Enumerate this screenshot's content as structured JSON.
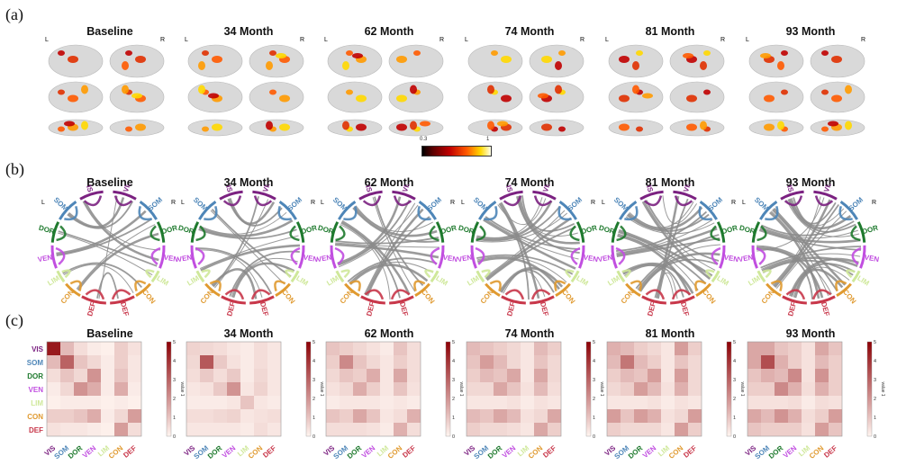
{
  "panel_labels": {
    "a": "(a)",
    "b": "(b)",
    "c": "(c)"
  },
  "timepoints": [
    "Baseline",
    "34 Month",
    "62 Month",
    "74 Month",
    "81 Month",
    "93 Month"
  ],
  "hemisphere_labels": {
    "left": "L",
    "right": "R"
  },
  "brain_colorbar": {
    "min_label": "0.3",
    "max_label": "1",
    "colors": [
      "#000000",
      "#5a0000",
      "#c00000",
      "#ff5a00",
      "#ffd800",
      "#ffffe8"
    ]
  },
  "networks": [
    {
      "name": "VIS",
      "color": "#7b2181"
    },
    {
      "name": "SOM",
      "color": "#4e86b8"
    },
    {
      "name": "DOR",
      "color": "#1f7a2e"
    },
    {
      "name": "VEN",
      "color": "#c14ee0"
    },
    {
      "name": "LIM",
      "color": "#cfe89a"
    },
    {
      "name": "CON",
      "color": "#e09a30"
    },
    {
      "name": "DEF",
      "color": "#c8374a"
    }
  ],
  "heatmap_colorbar": {
    "label": "value 1",
    "ticks": [
      "0",
      "1",
      "2",
      "3",
      "4",
      "5"
    ]
  },
  "chart_data": [
    {
      "type": "heatmap",
      "title": "Baseline",
      "categories": [
        "VIS",
        "SOM",
        "DOR",
        "VEN",
        "LIM",
        "CON",
        "DEF"
      ],
      "range": [
        0,
        5
      ],
      "values": [
        [
          4.5,
          1.2,
          0.5,
          0.2,
          0.1,
          0.8,
          0.4
        ],
        [
          1.2,
          3.0,
          1.0,
          0.6,
          0.2,
          0.8,
          0.3
        ],
        [
          0.5,
          1.0,
          0.6,
          2.0,
          0.2,
          1.0,
          0.3
        ],
        [
          0.2,
          0.6,
          2.0,
          1.5,
          0.2,
          1.5,
          0.2
        ],
        [
          0.1,
          0.2,
          0.2,
          0.2,
          0.1,
          0.2,
          0.1
        ],
        [
          0.8,
          0.8,
          1.0,
          1.5,
          0.2,
          0.6,
          1.8
        ],
        [
          0.4,
          0.3,
          0.3,
          0.2,
          0.1,
          1.8,
          0.5
        ]
      ]
    },
    {
      "type": "heatmap",
      "title": "34 Month",
      "categories": [
        "VIS",
        "SOM",
        "DOR",
        "VEN",
        "LIM",
        "CON",
        "DEF"
      ],
      "range": [
        0,
        5
      ],
      "values": [
        [
          0.7,
          0.6,
          0.5,
          0.3,
          0.2,
          0.5,
          0.3
        ],
        [
          0.6,
          3.2,
          0.9,
          0.4,
          0.2,
          0.5,
          0.3
        ],
        [
          0.5,
          0.9,
          0.5,
          0.9,
          0.2,
          0.6,
          0.3
        ],
        [
          0.3,
          0.4,
          0.9,
          2.0,
          0.3,
          0.7,
          0.3
        ],
        [
          0.2,
          0.2,
          0.2,
          0.3,
          1.0,
          0.3,
          0.2
        ],
        [
          0.5,
          0.5,
          0.6,
          0.7,
          0.3,
          0.4,
          0.5
        ],
        [
          0.3,
          0.3,
          0.3,
          0.3,
          0.2,
          0.5,
          0.3
        ]
      ]
    },
    {
      "type": "heatmap",
      "title": "62 Month",
      "categories": [
        "VIS",
        "SOM",
        "DOR",
        "VEN",
        "LIM",
        "CON",
        "DEF"
      ],
      "range": [
        0,
        5
      ],
      "values": [
        [
          1.0,
          0.8,
          0.6,
          0.4,
          0.2,
          1.0,
          0.5
        ],
        [
          0.8,
          2.2,
          1.0,
          0.6,
          0.3,
          0.8,
          0.5
        ],
        [
          0.6,
          1.0,
          0.8,
          1.5,
          0.3,
          1.6,
          0.5
        ],
        [
          0.4,
          0.6,
          1.5,
          0.8,
          0.3,
          1.0,
          0.4
        ],
        [
          0.2,
          0.3,
          0.3,
          0.3,
          0.2,
          0.3,
          0.2
        ],
        [
          1.0,
          0.8,
          1.6,
          1.0,
          0.3,
          0.5,
          1.4
        ],
        [
          0.5,
          0.5,
          0.5,
          0.4,
          0.2,
          1.4,
          0.5
        ]
      ]
    },
    {
      "type": "heatmap",
      "title": "74 Month",
      "categories": [
        "VIS",
        "SOM",
        "DOR",
        "VEN",
        "LIM",
        "CON",
        "DEF"
      ],
      "range": [
        0,
        5
      ],
      "values": [
        [
          1.2,
          1.0,
          0.8,
          0.6,
          0.3,
          1.2,
          0.8
        ],
        [
          1.0,
          1.8,
          1.2,
          0.6,
          0.3,
          1.0,
          0.6
        ],
        [
          0.8,
          1.2,
          1.0,
          1.6,
          0.3,
          1.6,
          0.6
        ],
        [
          0.6,
          0.6,
          1.6,
          1.0,
          0.4,
          1.2,
          0.5
        ],
        [
          0.3,
          0.3,
          0.3,
          0.4,
          0.2,
          0.4,
          0.3
        ],
        [
          1.2,
          1.0,
          1.6,
          1.2,
          0.4,
          0.6,
          1.6
        ],
        [
          0.8,
          0.6,
          0.6,
          0.5,
          0.3,
          1.6,
          0.8
        ]
      ]
    },
    {
      "type": "heatmap",
      "title": "81 Month",
      "categories": [
        "VIS",
        "SOM",
        "DOR",
        "VEN",
        "LIM",
        "CON",
        "DEF"
      ],
      "range": [
        0,
        5
      ],
      "values": [
        [
          1.4,
          1.2,
          0.8,
          0.6,
          0.3,
          1.8,
          0.8
        ],
        [
          1.2,
          2.6,
          1.2,
          0.8,
          0.3,
          1.0,
          0.6
        ],
        [
          0.8,
          1.2,
          1.0,
          1.8,
          0.3,
          1.8,
          0.6
        ],
        [
          0.6,
          0.8,
          1.8,
          1.2,
          0.4,
          1.4,
          0.6
        ],
        [
          0.3,
          0.3,
          0.3,
          0.4,
          0.2,
          0.4,
          0.3
        ],
        [
          1.8,
          1.0,
          1.8,
          1.4,
          0.4,
          0.6,
          1.8
        ],
        [
          0.8,
          0.6,
          0.6,
          0.6,
          0.3,
          1.8,
          0.8
        ]
      ]
    },
    {
      "type": "heatmap",
      "title": "93 Month",
      "categories": [
        "VIS",
        "SOM",
        "DOR",
        "VEN",
        "LIM",
        "CON",
        "DEF"
      ],
      "range": [
        0,
        5
      ],
      "values": [
        [
          1.6,
          1.6,
          1.0,
          0.8,
          0.4,
          1.6,
          1.0
        ],
        [
          1.6,
          3.4,
          1.4,
          0.8,
          0.4,
          1.2,
          0.8
        ],
        [
          1.0,
          1.4,
          1.2,
          2.2,
          0.4,
          2.0,
          0.8
        ],
        [
          0.8,
          0.8,
          2.2,
          1.4,
          0.5,
          1.4,
          0.8
        ],
        [
          0.4,
          0.4,
          0.4,
          0.5,
          0.2,
          0.5,
          0.4
        ],
        [
          1.6,
          1.2,
          2.0,
          1.4,
          0.5,
          0.8,
          1.8
        ],
        [
          1.0,
          0.8,
          0.8,
          0.8,
          0.4,
          1.8,
          1.0
        ]
      ]
    }
  ]
}
